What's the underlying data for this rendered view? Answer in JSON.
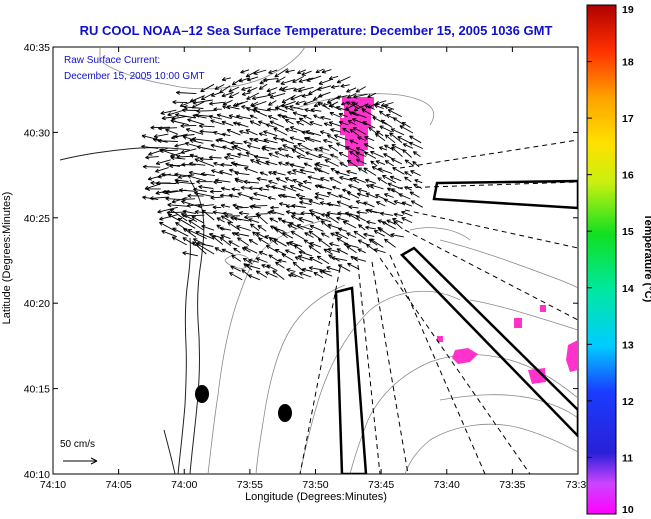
{
  "title": "RU COOL   NOAA–12  Sea Surface Temperature:  December 15, 2005 1036 GMT",
  "legend": {
    "line1": "Raw Surface Current:",
    "line2": "December 15, 2005 10:00 GMT"
  },
  "scale_label": "50 cm/s",
  "chart_data": {
    "type": "map",
    "title": "RU COOL   NOAA–12  Sea Surface Temperature:  December 15, 2005 1036 GMT",
    "xlabel": "Longitude (Degrees:Minutes)",
    "ylabel": "Latitude (Degrees:Minutes)",
    "x_ticks": [
      "74:10",
      "74:05",
      "74:00",
      "73:55",
      "73:50",
      "73:45",
      "73:40",
      "73:35",
      "73:3"
    ],
    "y_ticks": [
      "40:35",
      "40:30",
      "40:25",
      "40:20",
      "40:15",
      "40:10"
    ],
    "colorbar": {
      "label": "Temperature (°C)",
      "min": 10,
      "max": 19,
      "ticks": [
        "19",
        "18",
        "17",
        "16",
        "15",
        "14",
        "13",
        "12",
        "11",
        "10"
      ]
    },
    "sst_patches_note": "magenta (~10°C) patches near 73:47W 40:30N and in the southeast",
    "current_scale": "50 cm/s"
  },
  "colors": {
    "title": "#1010c8",
    "sst_patch": "#ff33cc",
    "arrow": "#000000",
    "contour": "#888888"
  }
}
